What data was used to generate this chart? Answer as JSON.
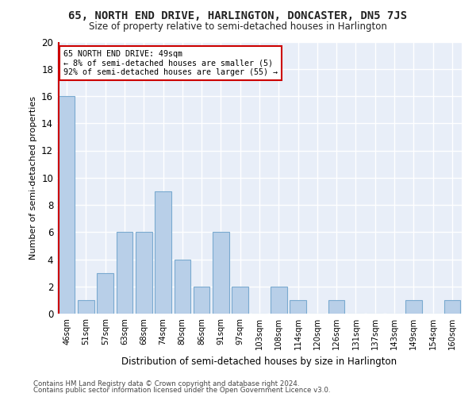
{
  "title": "65, NORTH END DRIVE, HARLINGTON, DONCASTER, DN5 7JS",
  "subtitle": "Size of property relative to semi-detached houses in Harlington",
  "xlabel": "Distribution of semi-detached houses by size in Harlington",
  "ylabel": "Number of semi-detached properties",
  "bar_labels": [
    "46sqm",
    "51sqm",
    "57sqm",
    "63sqm",
    "68sqm",
    "74sqm",
    "80sqm",
    "86sqm",
    "91sqm",
    "97sqm",
    "103sqm",
    "108sqm",
    "114sqm",
    "120sqm",
    "126sqm",
    "131sqm",
    "137sqm",
    "143sqm",
    "149sqm",
    "154sqm",
    "160sqm"
  ],
  "bar_values": [
    16,
    1,
    3,
    6,
    6,
    9,
    4,
    2,
    6,
    2,
    0,
    2,
    1,
    0,
    1,
    0,
    0,
    0,
    1,
    0,
    1
  ],
  "bar_color": "#b8cfe8",
  "bar_edge_color": "#7aaad0",
  "annotation_text_line1": "65 NORTH END DRIVE: 49sqm",
  "annotation_text_line2": "← 8% of semi-detached houses are smaller (5)",
  "annotation_text_line3": "92% of semi-detached houses are larger (55) →",
  "annotation_box_facecolor": "#ffffff",
  "annotation_box_edgecolor": "#cc0000",
  "red_line_color": "#cc0000",
  "ylim": [
    0,
    20
  ],
  "yticks": [
    0,
    2,
    4,
    6,
    8,
    10,
    12,
    14,
    16,
    18,
    20
  ],
  "background_color": "#e8eef8",
  "grid_color": "#ffffff",
  "footer_line1": "Contains HM Land Registry data © Crown copyright and database right 2024.",
  "footer_line2": "Contains public sector information licensed under the Open Government Licence v3.0."
}
